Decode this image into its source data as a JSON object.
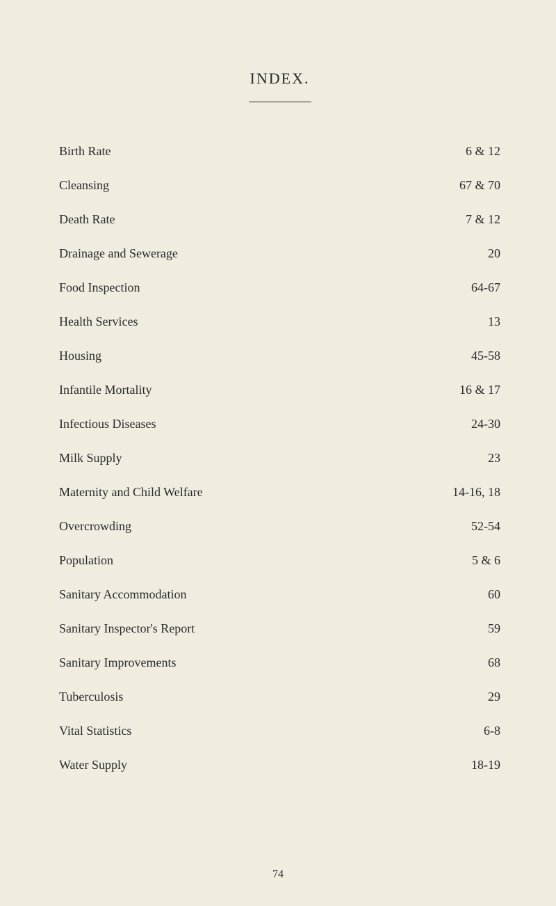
{
  "title": "INDEX.",
  "entries": [
    {
      "label": "Birth Rate",
      "value": "6 & 12"
    },
    {
      "label": "Cleansing",
      "value": "67 & 70"
    },
    {
      "label": "Death Rate",
      "value": "7 & 12"
    },
    {
      "label": "Drainage and Sewerage",
      "value": "20"
    },
    {
      "label": "Food Inspection",
      "value": "64-67"
    },
    {
      "label": "Health Services",
      "value": "13"
    },
    {
      "label": "Housing",
      "value": "45-58"
    },
    {
      "label": "Infantile Mortality",
      "value": "16 & 17"
    },
    {
      "label": "Infectious Diseases",
      "value": "24-30"
    },
    {
      "label": "Milk Supply",
      "value": "23"
    },
    {
      "label": "Maternity and Child Welfare",
      "value": "14-16, 18"
    },
    {
      "label": "Overcrowding",
      "value": "52-54"
    },
    {
      "label": "Population",
      "value": "5 & 6"
    },
    {
      "label": "Sanitary Accommodation",
      "value": "60"
    },
    {
      "label": "Sanitary Inspector's Report",
      "value": "59"
    },
    {
      "label": "Sanitary Improvements",
      "value": "68"
    },
    {
      "label": "Tuberculosis",
      "value": "29"
    },
    {
      "label": "Vital Statistics",
      "value": "6-8"
    },
    {
      "label": "Water Supply",
      "value": "18-19"
    }
  ],
  "pageNumber": "74"
}
